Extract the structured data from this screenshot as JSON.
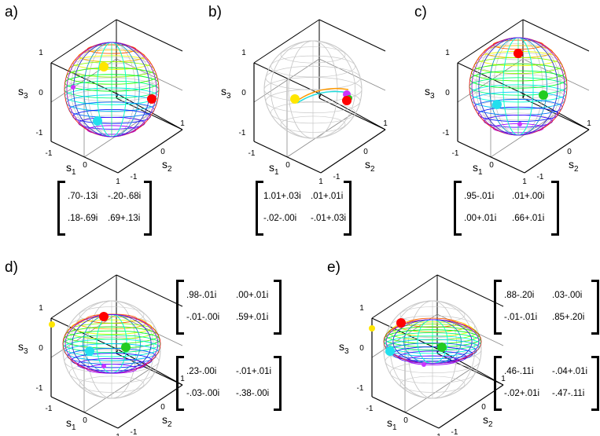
{
  "panels": [
    {
      "label": "a)",
      "matrices": [
        {
          "m11": ".70-.13i",
          "m12": "-.20-.68i",
          "m21": ".18-.69i",
          "m22": ".69+.13i"
        }
      ],
      "axes": {
        "s1": "s",
        "s1_sub": "1",
        "s2": "s",
        "s2_sub": "2",
        "s3": "s",
        "s3_sub": "3"
      },
      "ticks": {
        "z_top": "1",
        "z_mid": "0",
        "z_bot": "-1",
        "x_left": "-1",
        "x_mid": "0",
        "x_right": "1",
        "y_near": "-1",
        "y_mid": "0",
        "y_far": "1"
      }
    },
    {
      "label": "b)",
      "matrices": [
        {
          "m11": "1.01+.03i",
          "m12": ".01+.01i",
          "m21": "-.02-.00i",
          "m22": "-.01+.03i"
        }
      ],
      "axes": {
        "s1": "s",
        "s1_sub": "1",
        "s2": "s",
        "s2_sub": "2",
        "s3": "s",
        "s3_sub": "3"
      },
      "ticks": {
        "z_top": "1",
        "z_mid": "0",
        "z_bot": "-1",
        "x_left": "-1",
        "x_mid": "0",
        "x_right": "1",
        "y_near": "-1",
        "y_mid": "0",
        "y_far": "1"
      }
    },
    {
      "label": "c)",
      "matrices": [
        {
          "m11": ".95-.01i",
          "m12": ".01+.00i",
          "m21": ".00+.01i",
          "m22": ".66+.01i"
        }
      ],
      "axes": {
        "s1": "s",
        "s1_sub": "1",
        "s2": "s",
        "s2_sub": "2",
        "s3": "s",
        "s3_sub": "3"
      },
      "ticks": {
        "z_top": "1",
        "z_mid": "0",
        "z_bot": "-1",
        "x_left": "-1",
        "x_mid": "0",
        "x_right": "1",
        "y_near": "-1",
        "y_mid": "0",
        "y_far": "1"
      }
    },
    {
      "label": "d)",
      "matrices": [
        {
          "m11": ".98-.01i",
          "m12": ".00+.01i",
          "m21": "-.01-.00i",
          "m22": ".59+.01i"
        },
        {
          "m11": ".23-.00i",
          "m12": "-.01+.01i",
          "m21": "-.03-.00i",
          "m22": "-.38-.00i"
        }
      ],
      "axes": {
        "s1": "s",
        "s1_sub": "1",
        "s2": "s",
        "s2_sub": "2",
        "s3": "s",
        "s3_sub": "3"
      },
      "ticks": {
        "z_top": "1",
        "z_mid": "0",
        "z_bot": "-1",
        "x_left": "-1",
        "x_mid": "0",
        "x_right": "1",
        "y_near": "-1",
        "y_mid": "0",
        "y_far": "1"
      }
    },
    {
      "label": "e)",
      "matrices": [
        {
          "m11": ".88-.20i",
          "m12": ".03-.00i",
          "m21": "-.01-.01i",
          "m22": ".85+.20i"
        },
        {
          "m11": ".46-.11i",
          "m12": "-.04+.01i",
          "m21": "-.02+.01i",
          "m22": "-.47-.11i"
        }
      ],
      "axes": {
        "s1": "s",
        "s1_sub": "1",
        "s2": "s",
        "s2_sub": "2",
        "s3": "s",
        "s3_sub": "3"
      },
      "ticks": {
        "z_top": "1",
        "z_mid": "0",
        "z_bot": "-1",
        "x_left": "-1",
        "x_mid": "0",
        "x_right": "1",
        "y_near": "-1",
        "y_mid": "0",
        "y_far": "1"
      }
    }
  ],
  "colors": {
    "wireframe": "#c8c8c8",
    "axes": "#000000",
    "marker_red": "#ff0000",
    "marker_yellow": "#ffe600",
    "marker_cyan": "#22e0ee",
    "marker_green": "#22cc22",
    "marker_magenta": "#cc33ff"
  }
}
